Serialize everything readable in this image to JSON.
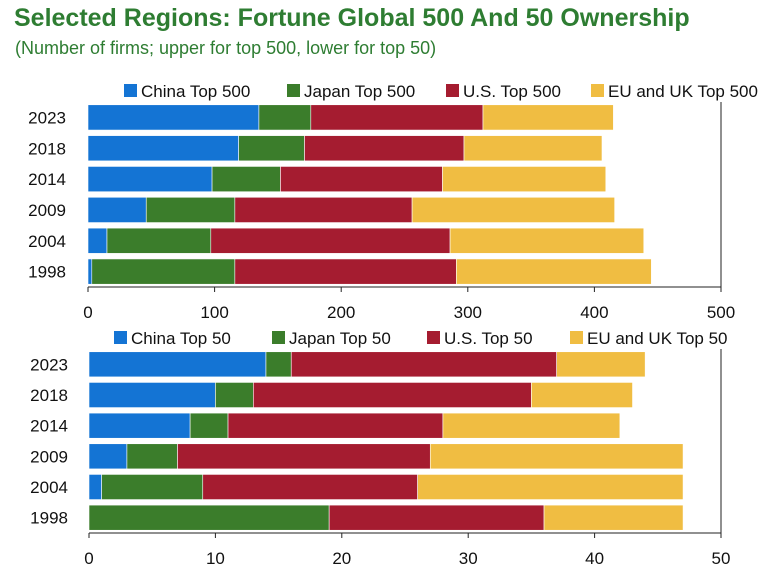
{
  "header": {
    "title": "Selected Regions: Fortune Global 500 And 50 Ownership",
    "subtitle": "(Number of firms; upper for top 500, lower for top 50)"
  },
  "chart_data": [
    {
      "type": "bar",
      "orientation": "horizontal",
      "stacked": true,
      "categories": [
        "2023",
        "2018",
        "2014",
        "2009",
        "2004",
        "1998"
      ],
      "series": [
        {
          "name": "China Top 500",
          "color": "#1474d4",
          "values": [
            135,
            119,
            98,
            46,
            15,
            3
          ]
        },
        {
          "name": "Japan Top 500",
          "color": "#3b7d2b",
          "values": [
            41,
            52,
            54,
            70,
            82,
            113
          ]
        },
        {
          "name": "U.S. Top 500",
          "color": "#a51c30",
          "values": [
            136,
            126,
            128,
            140,
            189,
            175
          ]
        },
        {
          "name": "EU and UK Top 500",
          "color": "#f0bd42",
          "values": [
            103,
            109,
            129,
            160,
            153,
            154
          ]
        }
      ],
      "xlim": [
        0,
        500
      ],
      "xticks": [
        "0",
        "100",
        "200",
        "300",
        "400",
        "500"
      ],
      "legend_position": "top"
    },
    {
      "type": "bar",
      "orientation": "horizontal",
      "stacked": true,
      "categories": [
        "2023",
        "2018",
        "2014",
        "2009",
        "2004",
        "1998"
      ],
      "series": [
        {
          "name": "China Top 50",
          "color": "#1474d4",
          "values": [
            14,
            10,
            8,
            3,
            1,
            0
          ]
        },
        {
          "name": "Japan Top 50",
          "color": "#3b7d2b",
          "values": [
            2,
            3,
            3,
            4,
            8,
            19
          ]
        },
        {
          "name": "U.S. Top 50",
          "color": "#a51c30",
          "values": [
            21,
            22,
            17,
            20,
            17,
            17
          ]
        },
        {
          "name": "EU and UK Top 50",
          "color": "#f0bd42",
          "values": [
            7,
            8,
            14,
            20,
            21,
            11
          ]
        }
      ],
      "xlim": [
        0,
        50
      ],
      "xticks": [
        "0",
        "10",
        "20",
        "30",
        "40",
        "50"
      ],
      "legend_position": "top"
    }
  ]
}
